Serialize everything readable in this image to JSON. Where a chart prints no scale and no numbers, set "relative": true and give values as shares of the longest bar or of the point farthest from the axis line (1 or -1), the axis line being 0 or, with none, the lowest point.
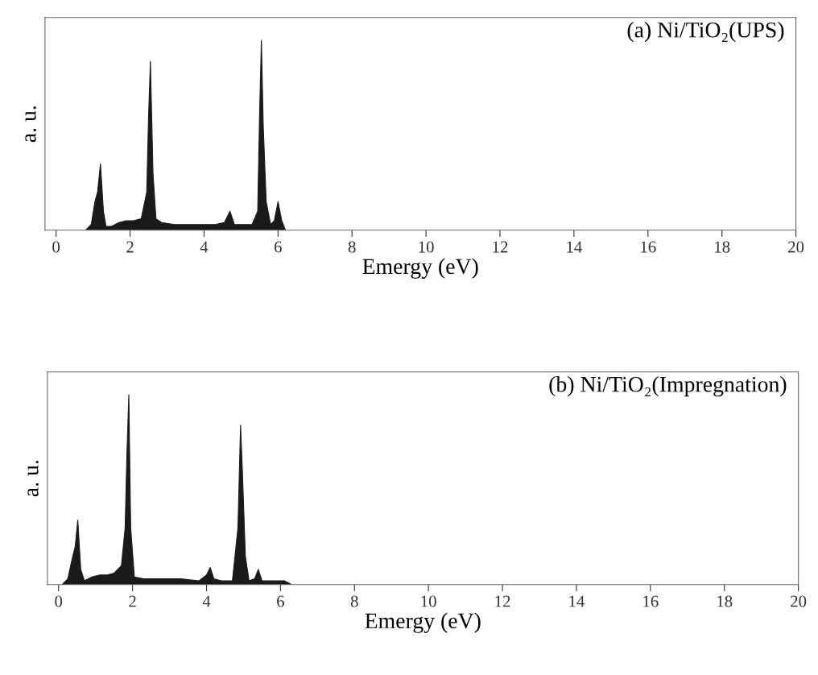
{
  "chart_data": [
    {
      "type": "area",
      "relative": true,
      "xlabel": "Emergy (eV)",
      "ylabel": "a. u.",
      "annotations": [
        "(a) Ni/TiO₂(UPS)"
      ],
      "xlim": [
        -0.3,
        20
      ],
      "xticks": [
        0,
        2,
        4,
        6,
        8,
        10,
        12,
        14,
        16,
        18,
        20
      ],
      "grid": false,
      "legend": false,
      "series": [
        {
          "color": "#1a1a1a",
          "x": [
            0.8,
            0.95,
            1.05,
            1.12,
            1.2,
            1.28,
            1.35,
            1.5,
            1.7,
            1.9,
            2.1,
            2.3,
            2.45,
            2.5,
            2.55,
            2.62,
            2.7,
            2.85,
            3.2,
            3.6,
            4.0,
            4.3,
            4.55,
            4.7,
            4.82,
            5.0,
            5.3,
            5.45,
            5.5,
            5.55,
            5.6,
            5.68,
            5.8,
            5.9,
            6.0,
            6.1,
            6.2
          ],
          "values": [
            0,
            0.03,
            0.15,
            0.2,
            0.35,
            0.1,
            0.02,
            0.02,
            0.04,
            0.05,
            0.05,
            0.06,
            0.2,
            0.6,
            0.89,
            0.3,
            0.06,
            0.04,
            0.03,
            0.03,
            0.03,
            0.03,
            0.04,
            0.1,
            0.03,
            0.03,
            0.03,
            0.1,
            0.6,
            1.0,
            0.55,
            0.15,
            0.03,
            0.05,
            0.15,
            0.05,
            0
          ]
        }
      ]
    },
    {
      "type": "area",
      "relative": true,
      "xlabel": "Emergy (eV)",
      "ylabel": "a. u.",
      "annotations": [
        "(b) Ni/TiO₂(Impregnation)"
      ],
      "xlim": [
        -0.3,
        20
      ],
      "xticks": [
        0,
        2,
        4,
        6,
        8,
        10,
        12,
        14,
        16,
        18,
        20
      ],
      "grid": false,
      "legend": false,
      "series": [
        {
          "color": "#1a1a1a",
          "x": [
            0.1,
            0.25,
            0.35,
            0.45,
            0.52,
            0.6,
            0.7,
            0.9,
            1.1,
            1.3,
            1.5,
            1.7,
            1.8,
            1.85,
            1.9,
            1.95,
            2.05,
            2.3,
            2.8,
            3.3,
            3.8,
            4.0,
            4.1,
            4.2,
            4.4,
            4.7,
            4.85,
            4.92,
            4.97,
            5.05,
            5.15,
            5.3,
            5.4,
            5.5,
            5.8,
            6.1,
            6.3
          ],
          "values": [
            0,
            0.03,
            0.12,
            0.2,
            0.34,
            0.08,
            0.02,
            0.04,
            0.05,
            0.05,
            0.06,
            0.1,
            0.3,
            0.7,
            1.0,
            0.3,
            0.04,
            0.03,
            0.03,
            0.03,
            0.02,
            0.05,
            0.09,
            0.03,
            0.02,
            0.02,
            0.3,
            0.84,
            0.6,
            0.15,
            0.02,
            0.03,
            0.08,
            0.02,
            0.02,
            0.02,
            0
          ]
        }
      ]
    }
  ]
}
